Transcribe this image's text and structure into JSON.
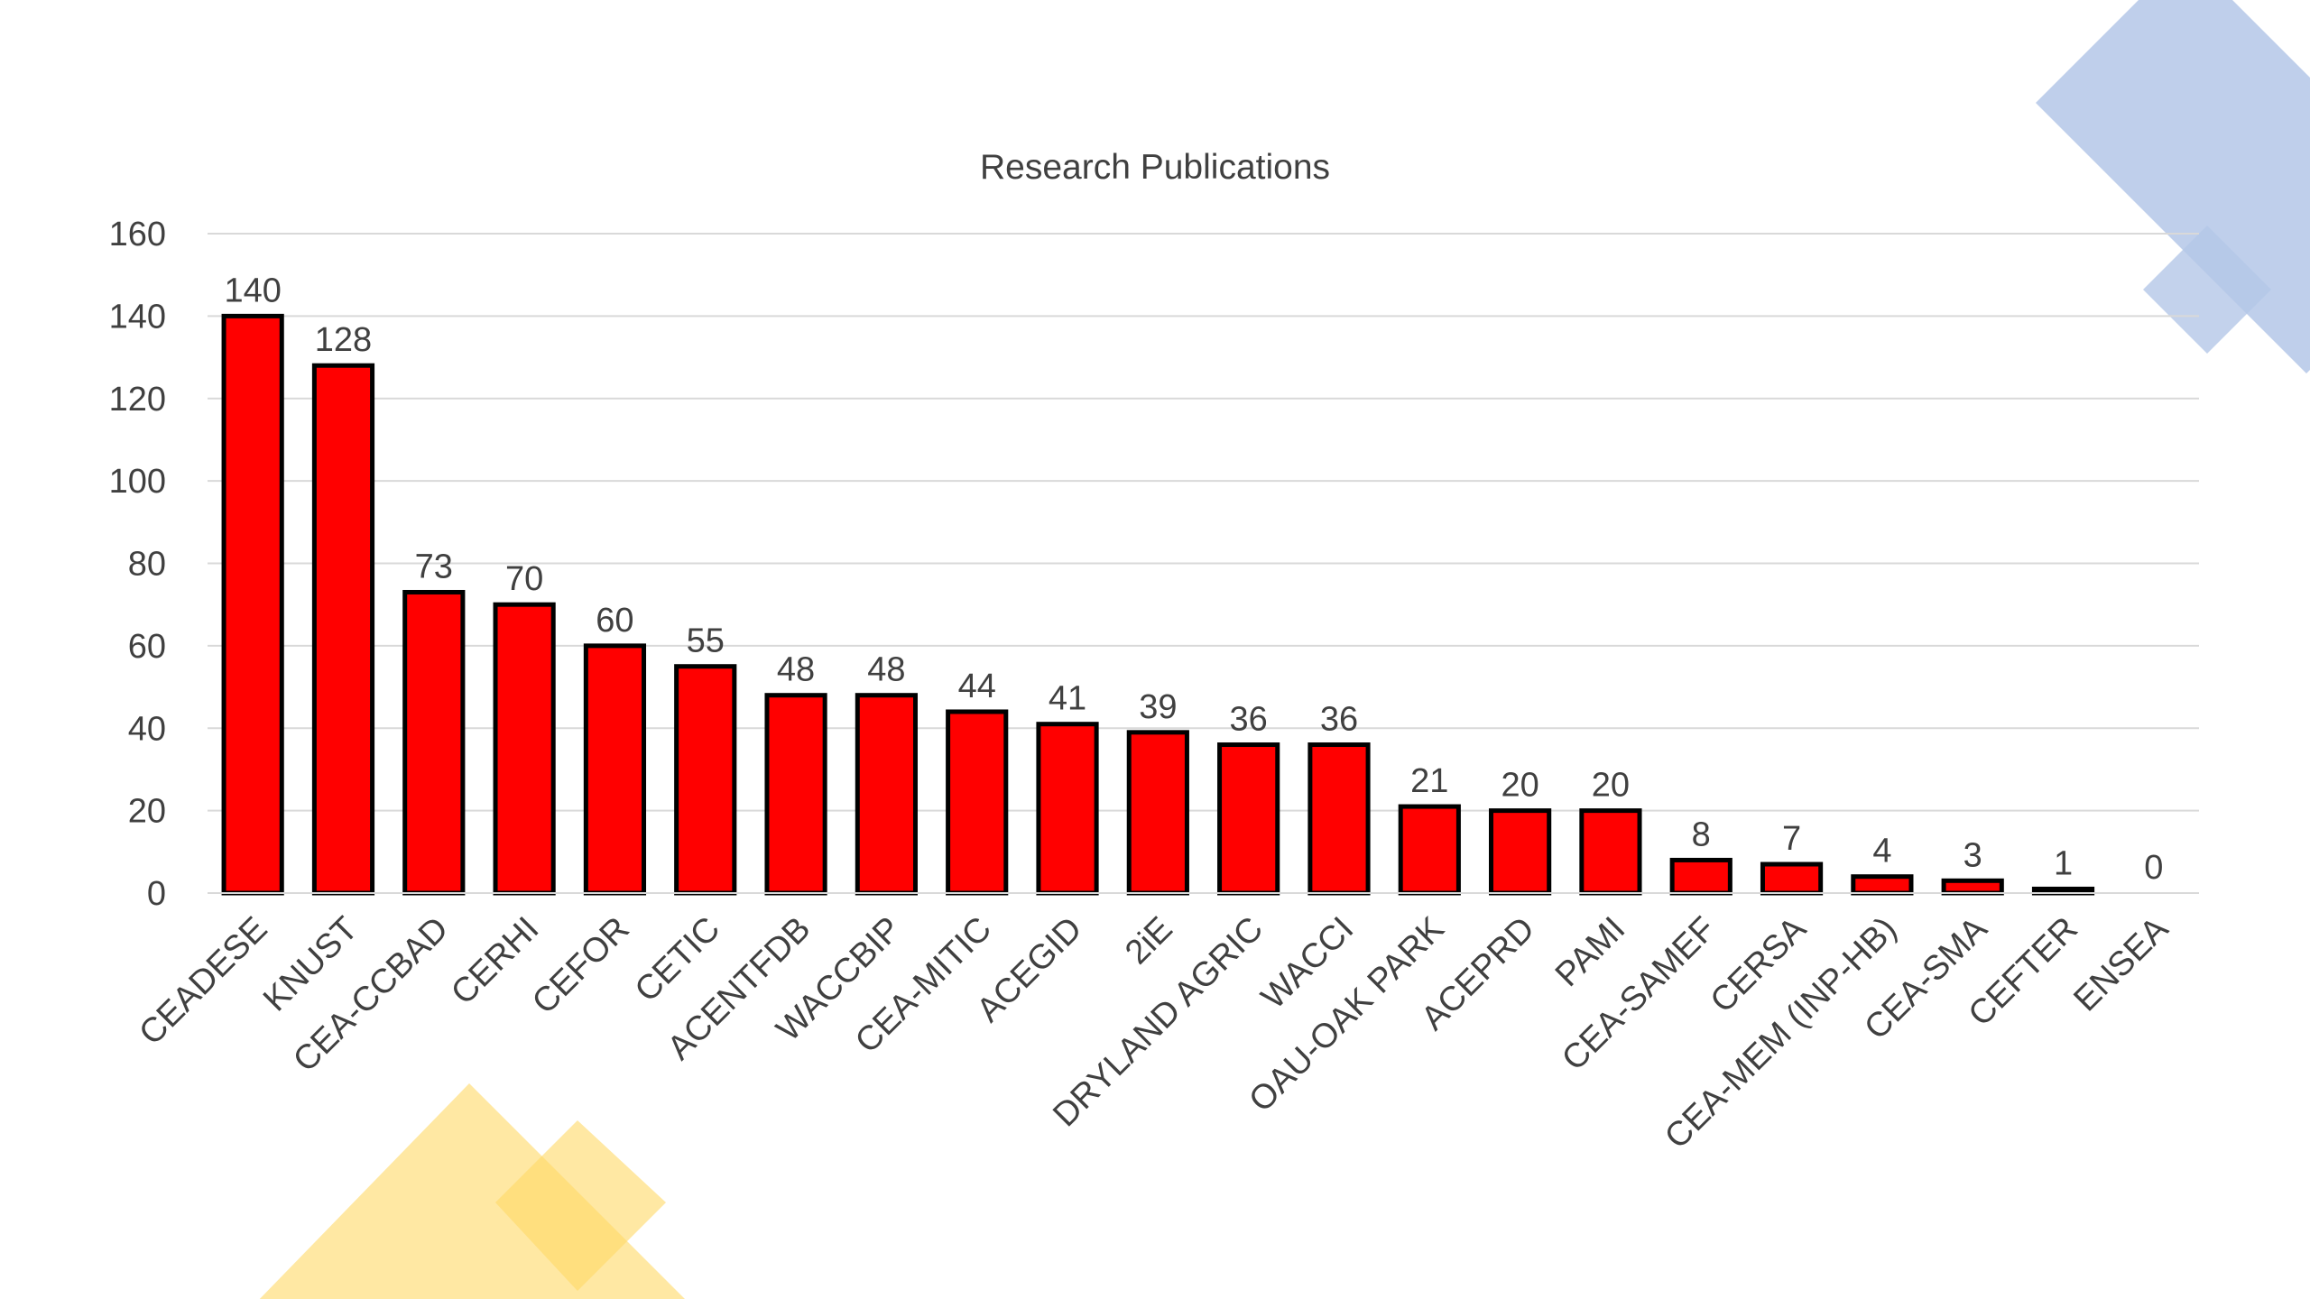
{
  "chart_data": {
    "type": "bar",
    "title": "Research Publications",
    "xlabel": "",
    "ylabel": "",
    "ylim": [
      0,
      160
    ],
    "yticks": [
      0,
      20,
      40,
      60,
      80,
      100,
      120,
      140,
      160
    ],
    "grid": true,
    "legend": "none",
    "bar_color": "#ff0000",
    "bar_edge_color": "#000000",
    "categories": [
      "CEADESE",
      "KNUST",
      "CEA-CCBAD",
      "CERHI",
      "CEFOR",
      "CETIC",
      "ACENTFDB",
      "WACCBIP",
      "CEA-MITIC",
      "ACEGID",
      "2iE",
      "DRYLAND AGRIC",
      "WACCI",
      "OAU-OAK PARK",
      "ACEPRD",
      "PAMI",
      "CEA-SAMEF",
      "CERSA",
      "CEA-MEM (INP-HB)",
      "CEA-SMA",
      "CEFTER",
      "ENSEA"
    ],
    "values": [
      140,
      128,
      73,
      70,
      60,
      55,
      48,
      48,
      44,
      41,
      39,
      36,
      36,
      21,
      20,
      20,
      8,
      7,
      4,
      3,
      1,
      0
    ]
  },
  "decor": {
    "blue_shape_color": "#b4c7e7",
    "yellow_shape_color": "#ffd966"
  }
}
